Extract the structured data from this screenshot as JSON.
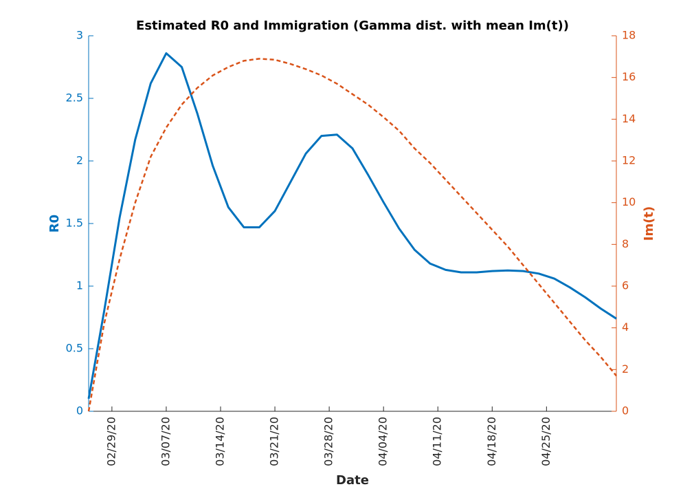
{
  "chart_data": {
    "type": "line",
    "title": "Estimated R0 and Immigration (Gamma dist. with mean Im(t))",
    "x_label": "Date",
    "y_label": "R0",
    "y2_label": "Im(t)",
    "x": [
      "02/26/20",
      "02/28/20",
      "03/01/20",
      "03/03/20",
      "03/05/20",
      "03/07/20",
      "03/09/20",
      "03/11/20",
      "03/13/20",
      "03/15/20",
      "03/17/20",
      "03/19/20",
      "03/21/20",
      "03/23/20",
      "03/25/20",
      "03/27/20",
      "03/29/20",
      "03/31/20",
      "04/02/20",
      "04/04/20",
      "04/06/20",
      "04/08/20",
      "04/10/20",
      "04/12/20",
      "04/14/20",
      "04/16/20",
      "04/18/20",
      "04/20/20",
      "04/22/20",
      "04/24/20",
      "04/26/20",
      "04/28/20",
      "04/30/20",
      "05/02/20",
      "05/04/20"
    ],
    "xlim": [
      "02/26/20",
      "05/04/20"
    ],
    "xticks": [
      "02/29/20",
      "03/07/20",
      "03/14/20",
      "03/21/20",
      "03/28/20",
      "04/04/20",
      "04/11/20",
      "04/18/20",
      "04/25/20"
    ],
    "ylim": [
      0,
      3
    ],
    "yticks": [
      0,
      0.5,
      1,
      1.5,
      2,
      2.5,
      3
    ],
    "y2lim": [
      0,
      18
    ],
    "y2ticks": [
      0,
      2,
      4,
      6,
      8,
      10,
      12,
      14,
      16,
      18
    ],
    "series": [
      {
        "name": "R0",
        "color": "#0072bd",
        "line_style": "solid",
        "values": [
          0.1,
          0.8,
          1.55,
          2.17,
          2.62,
          2.86,
          2.75,
          2.38,
          1.96,
          1.63,
          1.47,
          1.47,
          1.6,
          1.83,
          2.06,
          2.2,
          2.21,
          2.1,
          1.89,
          1.67,
          1.46,
          1.29,
          1.18,
          1.13,
          1.11,
          1.11,
          1.12,
          1.125,
          1.12,
          1.1,
          1.06,
          0.99,
          0.91,
          0.82,
          0.74
        ]
      },
      {
        "name": "Im(t)",
        "color": "#d95319",
        "line_style": "dashed",
        "axis": "y2",
        "values": [
          0,
          4.2,
          7.3,
          10,
          12.2,
          13.6,
          14.7,
          15.5,
          16.1,
          16.5,
          16.8,
          16.9,
          16.85,
          16.65,
          16.4,
          16.1,
          15.7,
          15.2,
          14.7,
          14.1,
          13.45,
          12.6,
          11.9,
          11.1,
          10.3,
          9.5,
          8.7,
          7.9,
          7.0,
          6.1,
          5.2,
          4.3,
          3.4,
          2.6,
          1.7
        ]
      }
    ]
  }
}
